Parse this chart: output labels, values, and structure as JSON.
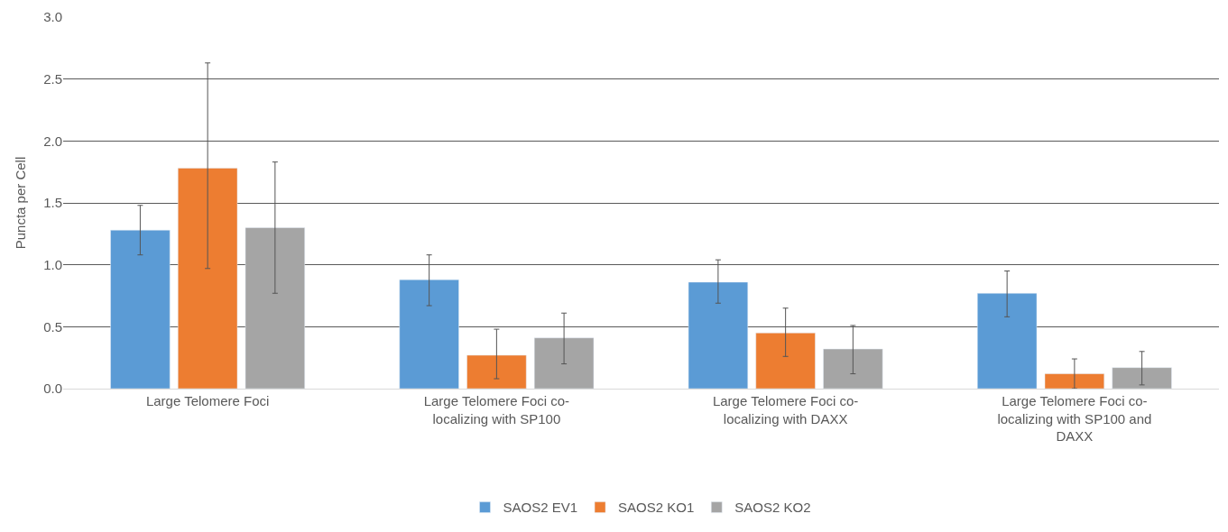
{
  "chart_data": {
    "type": "bar",
    "ylabel": "Puncta per Cell",
    "categories": [
      "Large Telomere Foci",
      "Large Telomere Foci co-localizing with SP100",
      "Large Telomere Foci co-localizing with DAXX",
      "Large Telomere Foci co-localizing with SP100 and DAXX"
    ],
    "series": [
      {
        "name": "SAOS2 EV1",
        "color": "#5b9bd5",
        "values": [
          1.28,
          0.88,
          0.86,
          0.77
        ],
        "errors": [
          [
            1.08,
            1.48
          ],
          [
            0.67,
            1.08
          ],
          [
            0.69,
            1.04
          ],
          [
            0.58,
            0.95
          ]
        ]
      },
      {
        "name": "SAOS2 KO1",
        "color": "#ed7d31",
        "values": [
          1.78,
          0.27,
          0.45,
          0.12
        ],
        "errors": [
          [
            0.97,
            2.63
          ],
          [
            0.08,
            0.48
          ],
          [
            0.26,
            0.65
          ],
          [
            0.0,
            0.24
          ]
        ]
      },
      {
        "name": "SAOS2 KO2",
        "color": "#a5a5a5",
        "values": [
          1.3,
          0.41,
          0.32,
          0.17
        ],
        "errors": [
          [
            0.77,
            1.83
          ],
          [
            0.2,
            0.61
          ],
          [
            0.12,
            0.51
          ],
          [
            0.03,
            0.3
          ]
        ]
      }
    ],
    "ylim": [
      0,
      3
    ],
    "yticks": [
      {
        "value": 0,
        "label": "0.0"
      },
      {
        "value": 0.5,
        "label": "0.5"
      },
      {
        "value": 1,
        "label": "1.0"
      },
      {
        "value": 1.5,
        "label": "1.5"
      },
      {
        "value": 2,
        "label": "2.0"
      },
      {
        "value": 2.5,
        "label": "2.5"
      },
      {
        "value": 3,
        "label": "3.0"
      }
    ],
    "grid": "y",
    "legend": "bottom"
  }
}
